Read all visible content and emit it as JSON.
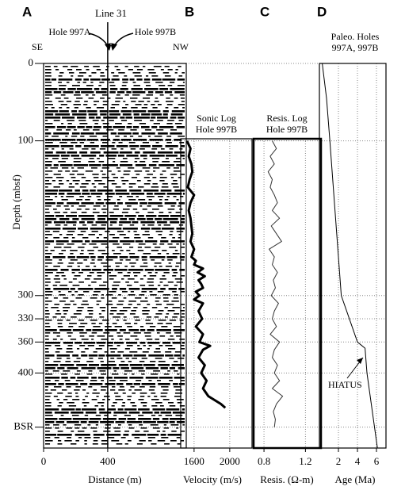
{
  "chart_data": [
    {
      "type": "seismic",
      "label": "A",
      "title": "Line 31",
      "left_hole": "Hole 997A",
      "right_hole": "Hole 997B",
      "left_dir": "SE",
      "right_dir": "NW",
      "x_label": "Distance (m)",
      "y_label": "Depth (mbsf)",
      "xlim": [
        0,
        890
      ],
      "xticks": [
        0,
        400
      ],
      "ylim": [
        0,
        497
      ],
      "yticks": [
        0,
        100,
        300,
        330,
        360,
        400,
        {
          "value": 470,
          "label": "BSR"
        }
      ]
    },
    {
      "type": "line",
      "label": "B",
      "title": "Sonic Log",
      "subtitle": "Hole 997B",
      "x_label": "Velocity (m/s)",
      "xlim": [
        1450,
        2250
      ],
      "xticks": [
        1600,
        2000
      ],
      "grid": true,
      "color": "#000000",
      "x": [
        100,
        110,
        120,
        130,
        140,
        150,
        160,
        170,
        180,
        190,
        200,
        210,
        220,
        230,
        240,
        250,
        255,
        260,
        265,
        270,
        275,
        280,
        285,
        290,
        295,
        300,
        305,
        310,
        320,
        330,
        340,
        350,
        360,
        365,
        370,
        380,
        390,
        400,
        410,
        420,
        430,
        440,
        445
      ],
      "values": [
        1520,
        1560,
        1540,
        1570,
        1580,
        1550,
        1530,
        1600,
        1560,
        1540,
        1560,
        1570,
        1580,
        1560,
        1600,
        1570,
        1620,
        1600,
        1700,
        1640,
        1720,
        1650,
        1680,
        1700,
        1620,
        1660,
        1600,
        1700,
        1650,
        1690,
        1620,
        1700,
        1660,
        1780,
        1700,
        1650,
        1720,
        1680,
        1740,
        1700,
        1760,
        1900,
        1950
      ]
    },
    {
      "type": "line",
      "label": "C",
      "title": "Resis. Log",
      "subtitle": "Hole 997B",
      "x_label": "Resis. (Ω-m)",
      "xlim": [
        0.7,
        1.35
      ],
      "xticks": [
        0.8,
        1.2
      ],
      "grid": true,
      "color": "#333333",
      "x": [
        100,
        110,
        120,
        130,
        140,
        150,
        160,
        170,
        180,
        190,
        200,
        210,
        220,
        230,
        240,
        250,
        260,
        270,
        280,
        290,
        300,
        310,
        320,
        330,
        340,
        350,
        360,
        370,
        380,
        390,
        400,
        410,
        420,
        430,
        440,
        450,
        460,
        470
      ],
      "values": [
        0.88,
        0.92,
        0.86,
        0.9,
        0.84,
        0.88,
        0.86,
        0.9,
        0.93,
        0.88,
        0.95,
        0.87,
        0.92,
        0.97,
        0.85,
        0.9,
        0.88,
        0.93,
        0.89,
        0.91,
        0.87,
        0.94,
        0.9,
        0.88,
        0.92,
        0.86,
        0.95,
        0.9,
        0.88,
        0.93,
        0.9,
        0.95,
        0.88,
        0.98,
        0.92,
        0.89,
        0.91,
        0.9
      ]
    },
    {
      "type": "line",
      "label": "D",
      "title": "Paleo. Holes",
      "subtitle": "997A, 997B",
      "annotation": "HIATUS",
      "x_label": "Age (Ma)",
      "xlim": [
        0,
        7
      ],
      "xticks": [
        2,
        4,
        6
      ],
      "grid": true,
      "color": "#000000",
      "x": [
        0,
        10,
        30,
        45,
        100,
        200,
        300,
        360,
        368,
        400,
        497
      ],
      "values": [
        0.3,
        0.4,
        0.6,
        0.75,
        1.1,
        1.7,
        2.3,
        4.0,
        4.8,
        5.0,
        6.1
      ]
    }
  ]
}
